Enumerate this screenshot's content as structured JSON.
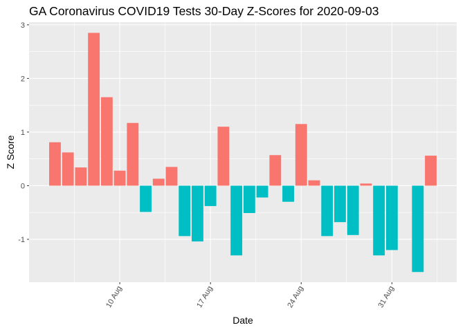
{
  "chart_data": {
    "type": "bar",
    "title": "GA Coronavirus COVID19 Tests 30-Day Z-Scores for 2020-09-03",
    "xlabel": "Date",
    "ylabel": "Z Score",
    "ylim": [
      -1.8,
      3.05
    ],
    "y_ticks": [
      -1,
      0,
      1,
      2,
      3
    ],
    "x_ticks": [
      {
        "date": "2020-08-10",
        "label": "10 Aug"
      },
      {
        "date": "2020-08-17",
        "label": "17 Aug"
      },
      {
        "date": "2020-08-24",
        "label": "24 Aug"
      },
      {
        "date": "2020-08-31",
        "label": "31 Aug"
      }
    ],
    "x_range": [
      "2020-08-03",
      "2020-09-05"
    ],
    "colors": {
      "positive": "#F8766D",
      "negative": "#00BFC4",
      "panel": "#EBEBEB",
      "grid": "#FFFFFF"
    },
    "grid": true,
    "legend": "none",
    "x": [
      "2020-08-05",
      "2020-08-06",
      "2020-08-07",
      "2020-08-08",
      "2020-08-09",
      "2020-08-10",
      "2020-08-11",
      "2020-08-12",
      "2020-08-13",
      "2020-08-14",
      "2020-08-15",
      "2020-08-16",
      "2020-08-17",
      "2020-08-18",
      "2020-08-19",
      "2020-08-20",
      "2020-08-21",
      "2020-08-22",
      "2020-08-23",
      "2020-08-24",
      "2020-08-25",
      "2020-08-26",
      "2020-08-27",
      "2020-08-28",
      "2020-08-29",
      "2020-08-30",
      "2020-08-31",
      "2020-09-01",
      "2020-09-02",
      "2020-09-03"
    ],
    "values": [
      0.81,
      0.62,
      0.34,
      2.85,
      1.65,
      0.28,
      1.17,
      -0.49,
      0.13,
      0.35,
      -0.94,
      -1.04,
      -0.38,
      1.1,
      -1.3,
      -0.51,
      -0.22,
      0.57,
      -0.3,
      1.15,
      0.1,
      -0.94,
      -0.68,
      -0.92,
      0.04,
      -1.3,
      -1.2,
      0.0,
      -1.61,
      0.56
    ]
  }
}
